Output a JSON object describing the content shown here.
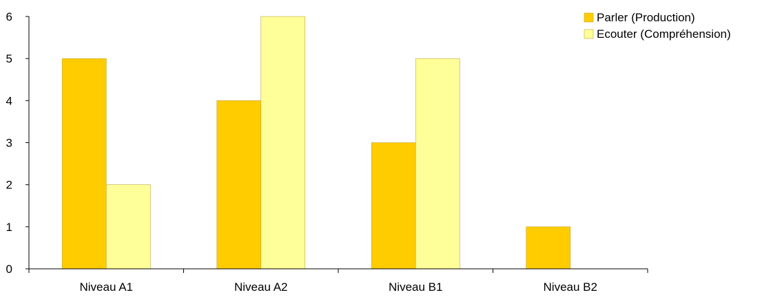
{
  "chart_data": {
    "type": "bar",
    "categories": [
      "Niveau A1",
      "Niveau A2",
      "Niveau B1",
      "Niveau B2"
    ],
    "series": [
      {
        "name": "Parler (Production)",
        "values": [
          5,
          4,
          3,
          1
        ],
        "color": "#FFCC00"
      },
      {
        "name": "Ecouter (Compréhension)",
        "values": [
          2,
          6,
          5,
          0
        ],
        "color": "#FFFF99"
      }
    ],
    "y_ticks": [
      "0",
      "1",
      "2",
      "3",
      "4",
      "5",
      "6"
    ],
    "ylim": [
      0,
      6
    ],
    "title": "",
    "xlabel": "",
    "ylabel": "",
    "grid": false,
    "legend_position": "top-right"
  }
}
